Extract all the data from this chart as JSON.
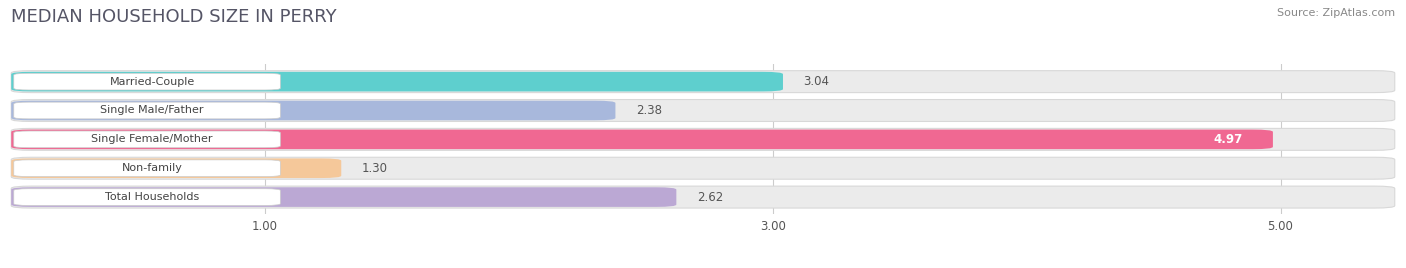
{
  "title": "MEDIAN HOUSEHOLD SIZE IN PERRY",
  "source": "Source: ZipAtlas.com",
  "categories": [
    "Married-Couple",
    "Single Male/Father",
    "Single Female/Mother",
    "Non-family",
    "Total Households"
  ],
  "values": [
    3.04,
    2.38,
    4.97,
    1.3,
    2.62
  ],
  "bar_colors": [
    "#5ECFCE",
    "#A8B8DC",
    "#F06892",
    "#F5C89A",
    "#BBA8D4"
  ],
  "bar_edge_colors": [
    "#5ECFCE",
    "#A8B8DC",
    "#F06892",
    "#F5C89A",
    "#BBA8D4"
  ],
  "xlim_data": [
    0.0,
    5.5
  ],
  "x_axis_min": 1.0,
  "xticks": [
    1.0,
    3.0,
    5.0
  ],
  "background_color": "#ffffff",
  "bar_bg_color": "#ebebeb",
  "title_fontsize": 13,
  "label_fontsize": 8.0,
  "value_fontsize": 8.5,
  "source_fontsize": 8.0
}
